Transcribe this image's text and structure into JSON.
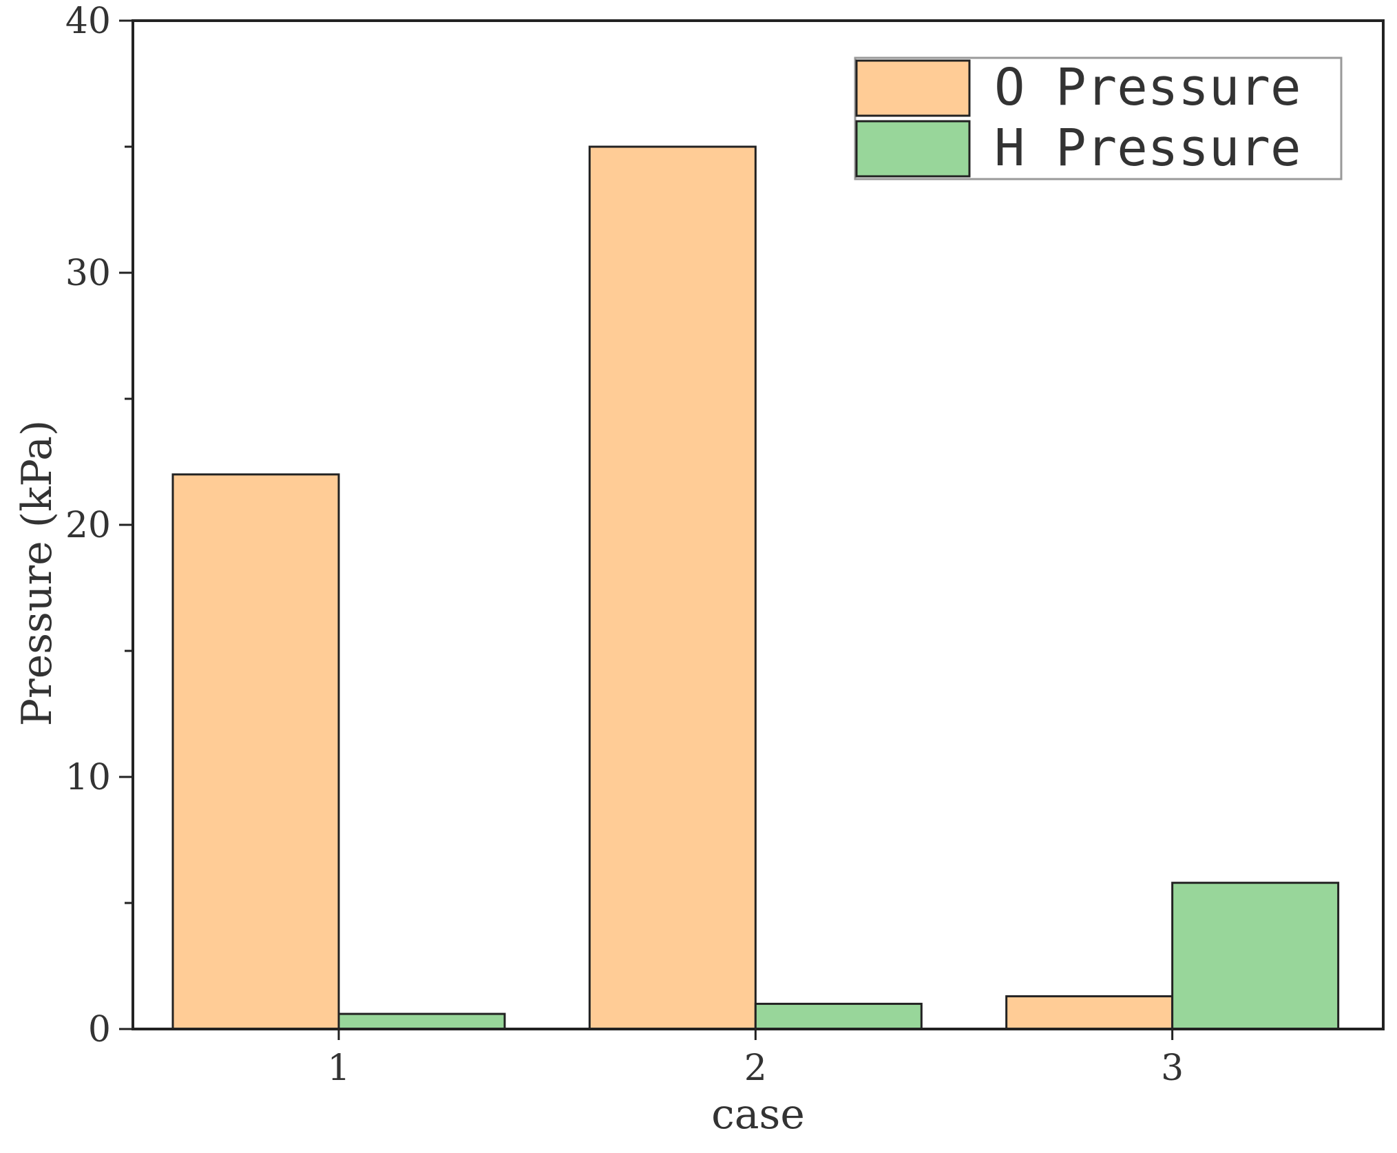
{
  "chart_data": {
    "type": "bar",
    "categories": [
      "1",
      "2",
      "3"
    ],
    "series": [
      {
        "name": "O Pressure",
        "values": [
          22.0,
          35.0,
          1.3
        ],
        "color": "#FFCC96"
      },
      {
        "name": "H Pressure",
        "values": [
          0.6,
          1.0,
          5.8
        ],
        "color": "#98D69A"
      }
    ],
    "title": "",
    "xlabel": "case",
    "ylabel": "Pressure (kPa)",
    "ylim": [
      0,
      40
    ],
    "yticks": [
      "0",
      "10",
      "20",
      "30",
      "40"
    ],
    "grid": false,
    "legend_position": "top-right"
  }
}
